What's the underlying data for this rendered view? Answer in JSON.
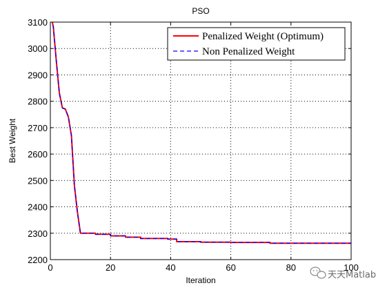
{
  "chart_data": {
    "type": "line",
    "title": "PSO",
    "xlabel": "Iteration",
    "ylabel": "Best Weight",
    "xlim": [
      0,
      100
    ],
    "ylim": [
      2200,
      3100
    ],
    "xticks": [
      0,
      20,
      40,
      60,
      80,
      100
    ],
    "yticks": [
      2200,
      2300,
      2400,
      2500,
      2600,
      2700,
      2800,
      2900,
      3000,
      3100
    ],
    "grid": true,
    "legend_position": "top-right",
    "series": [
      {
        "name": "Penalized Weight (Optimum)",
        "color": "#ff0000",
        "style": "solid",
        "x": [
          0,
          1,
          2,
          3,
          4,
          5,
          6,
          7,
          8,
          9,
          10,
          15,
          20,
          25,
          30,
          39,
          42,
          50,
          60,
          73,
          100
        ],
        "y": [
          3140,
          3080,
          2950,
          2830,
          2775,
          2770,
          2740,
          2670,
          2480,
          2380,
          2300,
          2296,
          2290,
          2285,
          2280,
          2278,
          2268,
          2266,
          2265,
          2262,
          2262
        ]
      },
      {
        "name": "Non Penalized Weight",
        "color": "#0000ff",
        "style": "dashed",
        "x": [
          0,
          1,
          2,
          3,
          4,
          5,
          6,
          7,
          8,
          9,
          10,
          15,
          20,
          25,
          30,
          39,
          42,
          50,
          60,
          73,
          100
        ],
        "y": [
          3140,
          3080,
          2950,
          2830,
          2775,
          2770,
          2740,
          2670,
          2480,
          2380,
          2300,
          2296,
          2290,
          2285,
          2280,
          2278,
          2268,
          2266,
          2265,
          2262,
          2262
        ]
      }
    ]
  },
  "watermark": {
    "text": "天天Matlab",
    "icon": "wechat-icon"
  }
}
